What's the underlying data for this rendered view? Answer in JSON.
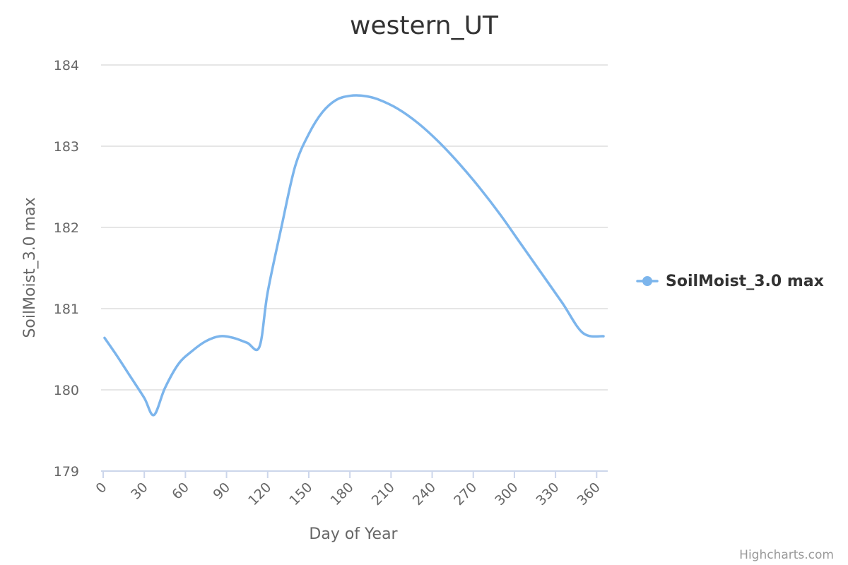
{
  "chart_data": {
    "type": "line",
    "title": "western_UT",
    "xlabel": "Day of Year",
    "ylabel": "SoilMoist_3.0 max",
    "xlim": [
      0,
      365
    ],
    "ylim": [
      179,
      184
    ],
    "x_ticks": [
      0,
      30,
      60,
      90,
      120,
      150,
      180,
      210,
      240,
      270,
      300,
      330,
      360
    ],
    "y_ticks": [
      179,
      180,
      181,
      182,
      183,
      184
    ],
    "grid": true,
    "legend_position": "right",
    "series": [
      {
        "name": "SoilMoist_3.0 max",
        "color": "#7cb5ec",
        "x": [
          1,
          10,
          20,
          30,
          37,
          45,
          55,
          65,
          75,
          85,
          95,
          105,
          114,
          120,
          130,
          140,
          150,
          160,
          170,
          180,
          190,
          200,
          215,
          230,
          245,
          260,
          275,
          290,
          305,
          320,
          335,
          350,
          365
        ],
        "y": [
          180.64,
          180.42,
          180.16,
          179.9,
          179.69,
          180.02,
          180.32,
          180.48,
          180.6,
          180.66,
          180.64,
          180.58,
          180.53,
          181.2,
          182.0,
          182.75,
          183.15,
          183.42,
          183.57,
          183.62,
          183.62,
          183.58,
          183.46,
          183.28,
          183.05,
          182.78,
          182.48,
          182.15,
          181.79,
          181.43,
          181.07,
          180.7,
          180.66
        ]
      }
    ]
  },
  "credits": "Highcharts.com"
}
